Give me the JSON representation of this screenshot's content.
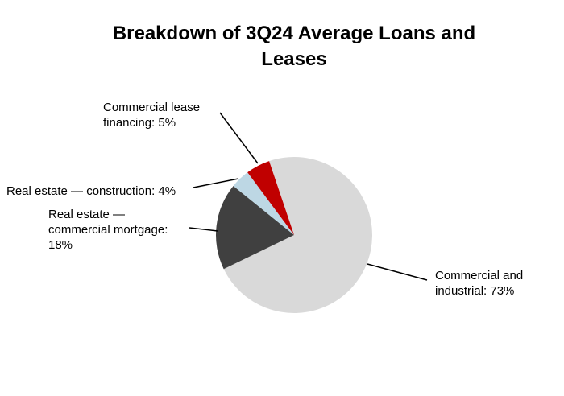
{
  "chart_data": {
    "type": "pie",
    "title": "Breakdown of 3Q24 Average Loans and Leases",
    "values": [
      73,
      18,
      4,
      5
    ],
    "value_labels": [
      "Commercial and industrial: 73%",
      "Real estate — commercial mortgage: 18%",
      "Real estate — construction: 4%",
      "Commercial lease financing: 5%"
    ],
    "colors": [
      "#d9d9d9",
      "#404040",
      "#bdd7e4",
      "#c00000"
    ]
  }
}
